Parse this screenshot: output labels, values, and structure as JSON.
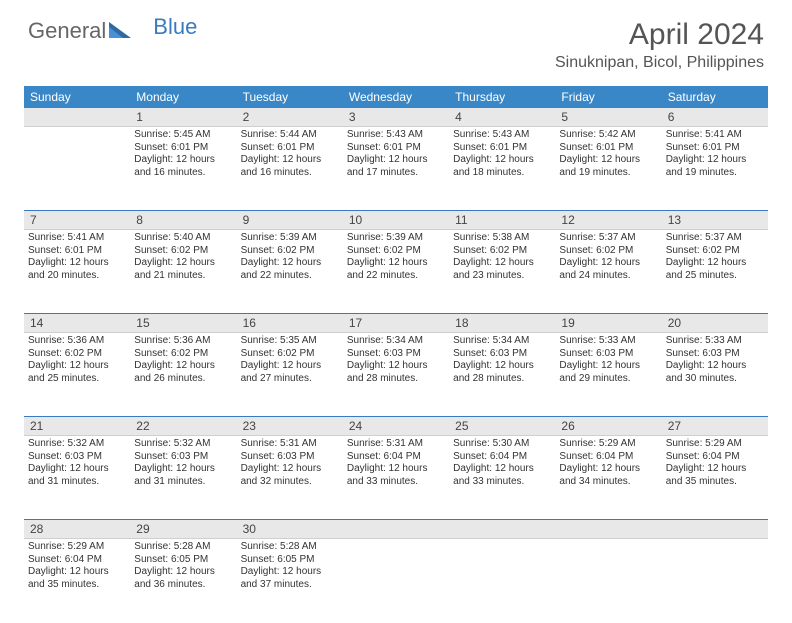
{
  "brand": {
    "part1": "General",
    "part2": "Blue"
  },
  "title": "April 2024",
  "location": "Sinuknipan, Bicol, Philippines",
  "colors": {
    "header_bg": "#3a87c7",
    "header_text": "#ffffff",
    "rule": "#3a7bbf",
    "daynum_bg": "#e8e8e8",
    "body_text": "#333333",
    "page_bg": "#ffffff"
  },
  "day_names": [
    "Sunday",
    "Monday",
    "Tuesday",
    "Wednesday",
    "Thursday",
    "Friday",
    "Saturday"
  ],
  "weeks": [
    {
      "nums": [
        "",
        "1",
        "2",
        "3",
        "4",
        "5",
        "6"
      ],
      "cells": [
        {
          "sunrise": "",
          "sunset": "",
          "daylight": ""
        },
        {
          "sunrise": "Sunrise: 5:45 AM",
          "sunset": "Sunset: 6:01 PM",
          "daylight": "Daylight: 12 hours and 16 minutes."
        },
        {
          "sunrise": "Sunrise: 5:44 AM",
          "sunset": "Sunset: 6:01 PM",
          "daylight": "Daylight: 12 hours and 16 minutes."
        },
        {
          "sunrise": "Sunrise: 5:43 AM",
          "sunset": "Sunset: 6:01 PM",
          "daylight": "Daylight: 12 hours and 17 minutes."
        },
        {
          "sunrise": "Sunrise: 5:43 AM",
          "sunset": "Sunset: 6:01 PM",
          "daylight": "Daylight: 12 hours and 18 minutes."
        },
        {
          "sunrise": "Sunrise: 5:42 AM",
          "sunset": "Sunset: 6:01 PM",
          "daylight": "Daylight: 12 hours and 19 minutes."
        },
        {
          "sunrise": "Sunrise: 5:41 AM",
          "sunset": "Sunset: 6:01 PM",
          "daylight": "Daylight: 12 hours and 19 minutes."
        }
      ]
    },
    {
      "nums": [
        "7",
        "8",
        "9",
        "10",
        "11",
        "12",
        "13"
      ],
      "cells": [
        {
          "sunrise": "Sunrise: 5:41 AM",
          "sunset": "Sunset: 6:01 PM",
          "daylight": "Daylight: 12 hours and 20 minutes."
        },
        {
          "sunrise": "Sunrise: 5:40 AM",
          "sunset": "Sunset: 6:02 PM",
          "daylight": "Daylight: 12 hours and 21 minutes."
        },
        {
          "sunrise": "Sunrise: 5:39 AM",
          "sunset": "Sunset: 6:02 PM",
          "daylight": "Daylight: 12 hours and 22 minutes."
        },
        {
          "sunrise": "Sunrise: 5:39 AM",
          "sunset": "Sunset: 6:02 PM",
          "daylight": "Daylight: 12 hours and 22 minutes."
        },
        {
          "sunrise": "Sunrise: 5:38 AM",
          "sunset": "Sunset: 6:02 PM",
          "daylight": "Daylight: 12 hours and 23 minutes."
        },
        {
          "sunrise": "Sunrise: 5:37 AM",
          "sunset": "Sunset: 6:02 PM",
          "daylight": "Daylight: 12 hours and 24 minutes."
        },
        {
          "sunrise": "Sunrise: 5:37 AM",
          "sunset": "Sunset: 6:02 PM",
          "daylight": "Daylight: 12 hours and 25 minutes."
        }
      ]
    },
    {
      "nums": [
        "14",
        "15",
        "16",
        "17",
        "18",
        "19",
        "20"
      ],
      "cells": [
        {
          "sunrise": "Sunrise: 5:36 AM",
          "sunset": "Sunset: 6:02 PM",
          "daylight": "Daylight: 12 hours and 25 minutes."
        },
        {
          "sunrise": "Sunrise: 5:36 AM",
          "sunset": "Sunset: 6:02 PM",
          "daylight": "Daylight: 12 hours and 26 minutes."
        },
        {
          "sunrise": "Sunrise: 5:35 AM",
          "sunset": "Sunset: 6:02 PM",
          "daylight": "Daylight: 12 hours and 27 minutes."
        },
        {
          "sunrise": "Sunrise: 5:34 AM",
          "sunset": "Sunset: 6:03 PM",
          "daylight": "Daylight: 12 hours and 28 minutes."
        },
        {
          "sunrise": "Sunrise: 5:34 AM",
          "sunset": "Sunset: 6:03 PM",
          "daylight": "Daylight: 12 hours and 28 minutes."
        },
        {
          "sunrise": "Sunrise: 5:33 AM",
          "sunset": "Sunset: 6:03 PM",
          "daylight": "Daylight: 12 hours and 29 minutes."
        },
        {
          "sunrise": "Sunrise: 5:33 AM",
          "sunset": "Sunset: 6:03 PM",
          "daylight": "Daylight: 12 hours and 30 minutes."
        }
      ]
    },
    {
      "nums": [
        "21",
        "22",
        "23",
        "24",
        "25",
        "26",
        "27"
      ],
      "cells": [
        {
          "sunrise": "Sunrise: 5:32 AM",
          "sunset": "Sunset: 6:03 PM",
          "daylight": "Daylight: 12 hours and 31 minutes."
        },
        {
          "sunrise": "Sunrise: 5:32 AM",
          "sunset": "Sunset: 6:03 PM",
          "daylight": "Daylight: 12 hours and 31 minutes."
        },
        {
          "sunrise": "Sunrise: 5:31 AM",
          "sunset": "Sunset: 6:03 PM",
          "daylight": "Daylight: 12 hours and 32 minutes."
        },
        {
          "sunrise": "Sunrise: 5:31 AM",
          "sunset": "Sunset: 6:04 PM",
          "daylight": "Daylight: 12 hours and 33 minutes."
        },
        {
          "sunrise": "Sunrise: 5:30 AM",
          "sunset": "Sunset: 6:04 PM",
          "daylight": "Daylight: 12 hours and 33 minutes."
        },
        {
          "sunrise": "Sunrise: 5:29 AM",
          "sunset": "Sunset: 6:04 PM",
          "daylight": "Daylight: 12 hours and 34 minutes."
        },
        {
          "sunrise": "Sunrise: 5:29 AM",
          "sunset": "Sunset: 6:04 PM",
          "daylight": "Daylight: 12 hours and 35 minutes."
        }
      ]
    },
    {
      "nums": [
        "28",
        "29",
        "30",
        "",
        "",
        "",
        ""
      ],
      "cells": [
        {
          "sunrise": "Sunrise: 5:29 AM",
          "sunset": "Sunset: 6:04 PM",
          "daylight": "Daylight: 12 hours and 35 minutes."
        },
        {
          "sunrise": "Sunrise: 5:28 AM",
          "sunset": "Sunset: 6:05 PM",
          "daylight": "Daylight: 12 hours and 36 minutes."
        },
        {
          "sunrise": "Sunrise: 5:28 AM",
          "sunset": "Sunset: 6:05 PM",
          "daylight": "Daylight: 12 hours and 37 minutes."
        },
        {
          "sunrise": "",
          "sunset": "",
          "daylight": ""
        },
        {
          "sunrise": "",
          "sunset": "",
          "daylight": ""
        },
        {
          "sunrise": "",
          "sunset": "",
          "daylight": ""
        },
        {
          "sunrise": "",
          "sunset": "",
          "daylight": ""
        }
      ]
    }
  ]
}
